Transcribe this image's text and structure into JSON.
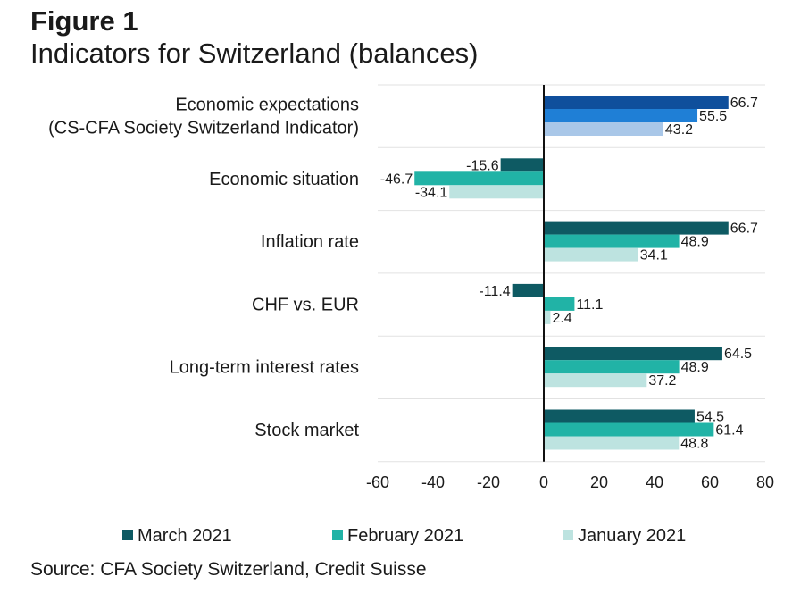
{
  "figure": {
    "label": "Figure 1",
    "title": "Indicators for Switzerland (balances)",
    "source": "Source: CFA Society Switzerland, Credit Suisse"
  },
  "colors": {
    "March 2021": "#0e5a63",
    "February 2021": "#21b3a6",
    "January 2021": "#bde3e0",
    "economic_expectations": [
      "#0f4f9c",
      "#1f7fd6",
      "#a9c7e8"
    ]
  },
  "chart_data": {
    "type": "bar",
    "orientation": "horizontal",
    "categories": [
      [
        "Economic expectations",
        "(CS-CFA Society Switzerland Indicator)"
      ],
      [
        "Economic situation"
      ],
      [
        "Inflation rate"
      ],
      [
        "CHF vs. EUR"
      ],
      [
        "Long-term interest rates"
      ],
      [
        "Stock market"
      ]
    ],
    "series": [
      {
        "name": "March 2021",
        "values": [
          66.7,
          -15.6,
          66.7,
          -11.4,
          64.5,
          54.5
        ]
      },
      {
        "name": "February 2021",
        "values": [
          55.5,
          -46.7,
          48.9,
          11.1,
          48.9,
          61.4
        ]
      },
      {
        "name": "January 2021",
        "values": [
          43.2,
          -34.1,
          34.1,
          2.4,
          37.2,
          48.8
        ]
      }
    ],
    "xlim": [
      -60,
      80
    ],
    "xticks": [
      -60,
      -40,
      -20,
      0,
      20,
      40,
      60,
      80
    ],
    "grid": "horizontal separators between categories",
    "legend": "bottom"
  }
}
